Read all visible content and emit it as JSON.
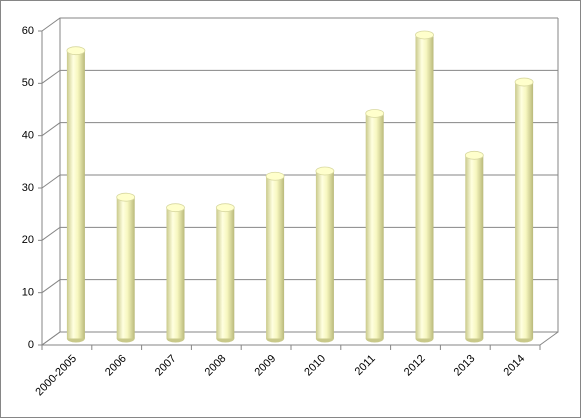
{
  "chart_data": {
    "type": "bar",
    "categories": [
      "2000-2005",
      "2006",
      "2007",
      "2008",
      "2009",
      "2010",
      "2011",
      "2012",
      "2013",
      "2014"
    ],
    "values": [
      55,
      27,
      25,
      25,
      31,
      32,
      43,
      58,
      35,
      49
    ],
    "color": "#ffffcc",
    "ylim": [
      0,
      60
    ],
    "yticks": [
      0,
      10,
      20,
      30,
      40,
      50,
      60
    ],
    "grid": true
  }
}
